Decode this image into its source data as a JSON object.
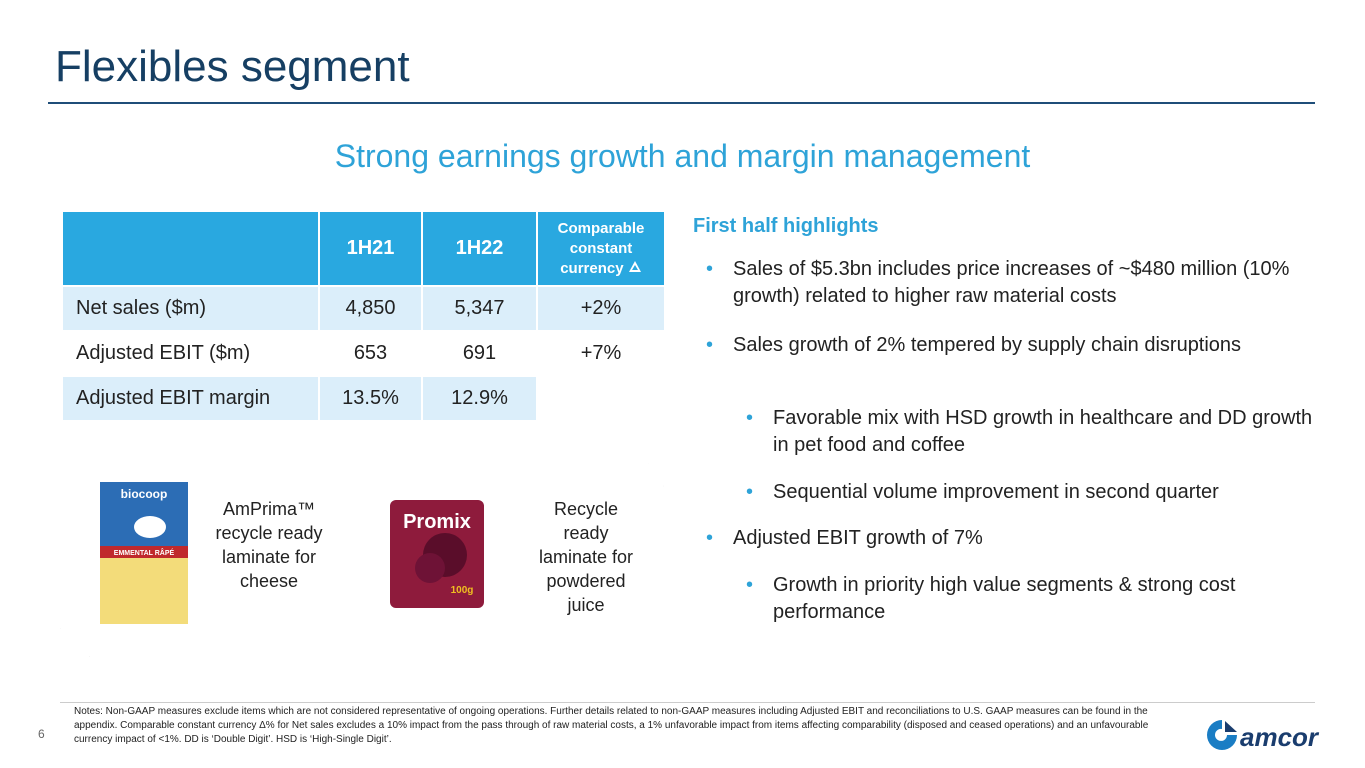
{
  "header": {
    "title": "Flexibles segment",
    "subtitle": "Strong earnings growth and margin management"
  },
  "table": {
    "columns": [
      "1H21",
      "1H22",
      "Comparable constant currency"
    ],
    "rows": [
      [
        "Net sales ($m)",
        "4,850",
        "5,347",
        "+2%"
      ],
      [
        "Adjusted EBIT ($m)",
        "653",
        "691",
        "+7%"
      ],
      [
        "Adjusted EBIT margin",
        "13.5%",
        "12.9%"
      ]
    ]
  },
  "products": [
    {
      "package": [
        "biocoop",
        "EMMENTAL RÂPÉ"
      ],
      "caption": "AmPrima™ recycle ready laminate for cheese"
    },
    {
      "package": [
        "Promix",
        "100g"
      ],
      "caption": "Recycle ready laminate for powdered juice"
    }
  ],
  "highlights": {
    "heading": "First half highlights",
    "items": [
      {
        "level": 1,
        "text": "Sales of $5.3bn includes price increases of ~$480 million (10% growth) related to higher raw material costs"
      },
      {
        "level": 1,
        "text": "Sales growth of 2% tempered by supply chain disruptions"
      },
      {
        "level": 2,
        "text": "Favorable mix with HSD growth in healthcare and DD growth in pet food and coffee"
      },
      {
        "level": 2,
        "text": "Sequential volume improvement in second quarter"
      },
      {
        "level": 1,
        "text": "Adjusted EBIT growth of 7%"
      },
      {
        "level": 2,
        "text": "Growth in priority high value segments & strong cost performance"
      }
    ]
  },
  "footer": {
    "notes": "Notes:  Non-GAAP measures exclude items which are not considered representative of ongoing operations.  Further details related to non-GAAP measures including Adjusted EBIT and reconciliations to U.S. GAAP measures can be found in the appendix.  Comparable constant currency Δ% for Net sales excludes a 10% impact from the pass through of raw material costs, a 1% unfavorable impact from items affecting comparability (disposed and ceased operations) and an unfavourable currency impact of <1%. DD is ‘Double Digit’. HSD is ‘High-Single Digit’.",
    "page": "6",
    "logo": "amcor"
  }
}
